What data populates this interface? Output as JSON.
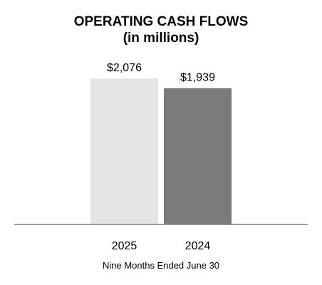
{
  "chart_data": {
    "type": "bar",
    "title": "OPERATING CASH FLOWS",
    "subtitle": "(in millions)",
    "categories": [
      "2025",
      "2024"
    ],
    "values": [
      2076,
      1939
    ],
    "data_labels": [
      "$2,076",
      "$1,939"
    ],
    "xlabel": "Nine Months Ended June 30",
    "ylabel": "",
    "ylim": [
      0,
      2200
    ],
    "grid": false,
    "colors": [
      "#e5e5e5",
      "#7a7a7a"
    ],
    "axis_color": "#7f7f7f"
  }
}
